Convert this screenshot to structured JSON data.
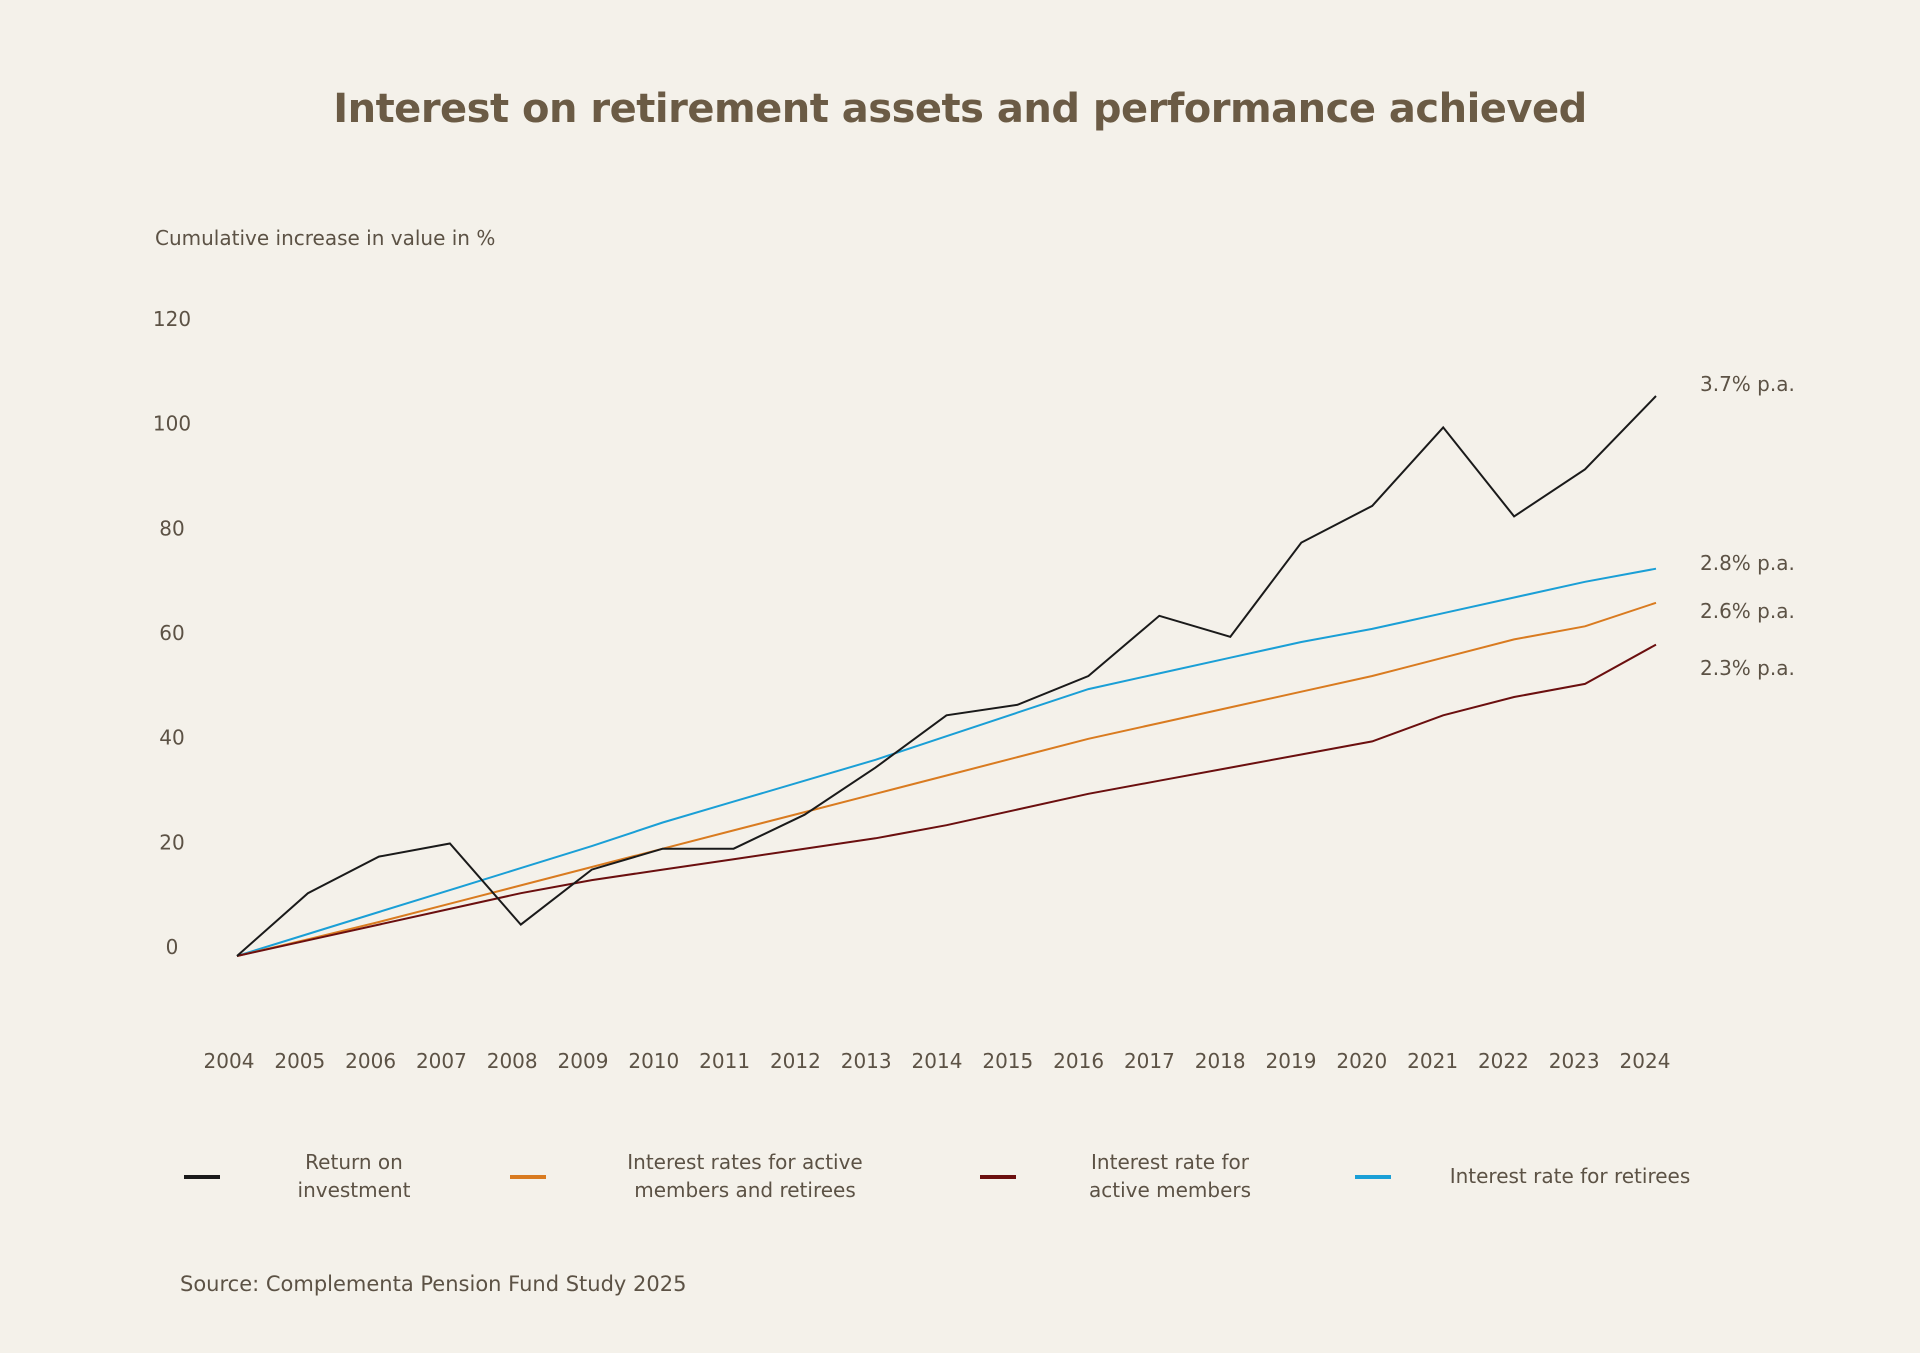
{
  "colors": {
    "background": "#f4f1ea",
    "text": "#5c5245",
    "title": "#6b5b45"
  },
  "chart_data": {
    "type": "line",
    "title": "Interest on retirement assets and performance achieved",
    "ylabel": "Cumulative increase in value in %",
    "xlabel": "",
    "ylim": [
      0,
      120
    ],
    "yticks": [
      0,
      20,
      40,
      60,
      80,
      100,
      120
    ],
    "grid": false,
    "legend_position": "bottom",
    "x": [
      "2004",
      "2005",
      "2006",
      "2007",
      "2008",
      "2009",
      "2010",
      "2011",
      "2012",
      "2013",
      "2014",
      "2015",
      "2016",
      "2017",
      "2018",
      "2019",
      "2020",
      "2021",
      "2022",
      "2023",
      "2024"
    ],
    "series": [
      {
        "name": "Return on investment",
        "legend_label": "Return on\ninvestment",
        "color": "#1a1a1a",
        "end_label": "3.7% p.a.",
        "values": [
          0,
          12,
          19,
          21.5,
          6,
          16.5,
          20.5,
          20.5,
          27,
          36,
          46,
          48,
          53.5,
          65,
          61,
          79,
          86,
          101,
          84,
          93,
          107
        ]
      },
      {
        "name": "Interest rates for active members and retirees",
        "legend_label": "Interest rates for active\nmembers and retirees",
        "color": "#d97b20",
        "end_label": "2.6% p.a.",
        "values": [
          0,
          3.2,
          6.5,
          10,
          13.5,
          17,
          20.5,
          24,
          27.5,
          31,
          34.5,
          38,
          41.5,
          44.5,
          47.5,
          50.5,
          53.5,
          57,
          60.5,
          63,
          67.5
        ]
      },
      {
        "name": "Interest rate for active members",
        "legend_label": "Interest rate for\nactive members",
        "color": "#6b0f0f",
        "end_label": "2.3% p.a.",
        "values": [
          0,
          3,
          6,
          9,
          12,
          14.5,
          16.5,
          18.5,
          20.5,
          22.5,
          25,
          28,
          31,
          33.5,
          36,
          38.5,
          41,
          46,
          49.5,
          52,
          59.5
        ]
      },
      {
        "name": "Interest rate for retirees",
        "legend_label": "Interest rate for retirees",
        "color": "#1a9fd6",
        "end_label": "2.8% p.a.",
        "values": [
          0,
          4.2,
          8.4,
          12.6,
          16.8,
          21,
          25.5,
          29.5,
          33.5,
          37.5,
          42,
          46.5,
          51,
          54,
          57,
          60,
          62.5,
          65.5,
          68.5,
          71.5,
          74
        ]
      }
    ]
  },
  "source": "Source: Complementa Pension Fund Study 2025"
}
